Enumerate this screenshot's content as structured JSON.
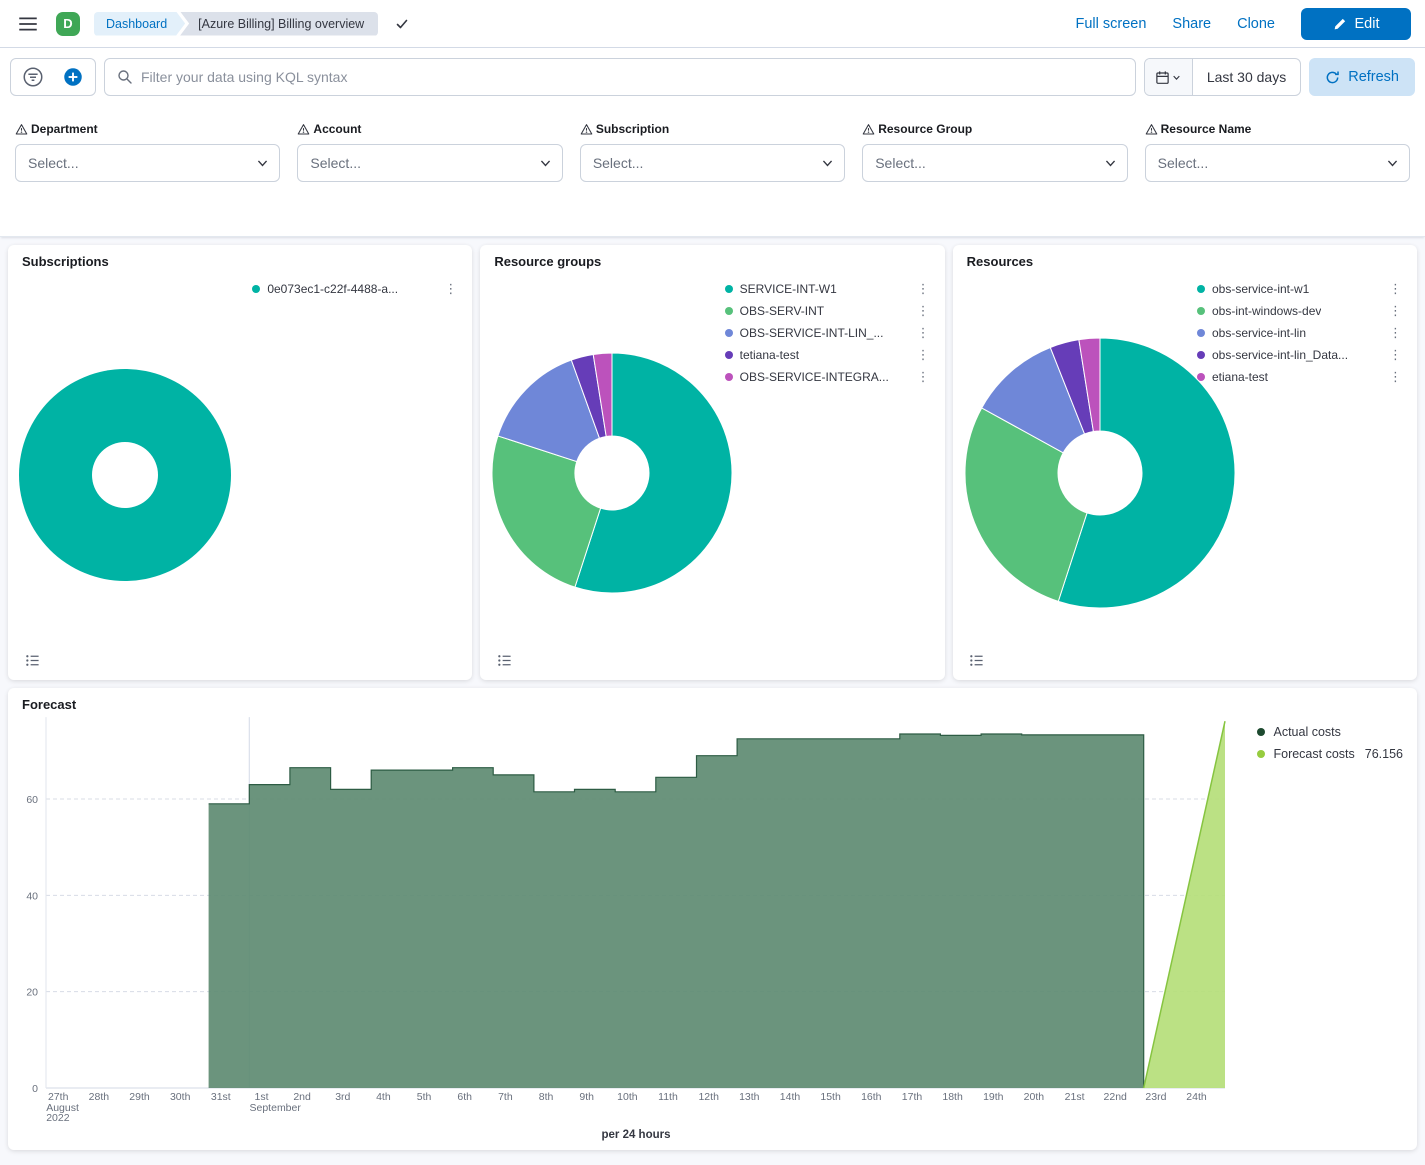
{
  "header": {
    "space_initial": "D",
    "breadcrumbs": [
      {
        "label": "Dashboard"
      },
      {
        "label": "[Azure Billing] Billing overview"
      }
    ],
    "links": {
      "full_screen": "Full screen",
      "share": "Share",
      "clone": "Clone"
    },
    "edit_button": "Edit"
  },
  "toolbar": {
    "search_placeholder": "Filter your data using KQL syntax",
    "time_range": "Last 30 days",
    "refresh_label": "Refresh"
  },
  "filters": {
    "placeholder": "Select...",
    "fields": [
      {
        "label": "Department"
      },
      {
        "label": "Account"
      },
      {
        "label": "Subscription"
      },
      {
        "label": "Resource Group"
      },
      {
        "label": "Resource Name"
      }
    ]
  },
  "icons": {
    "menu": "hamburger",
    "saved": "check",
    "edit": "pencil",
    "query_filters": "filter-funnel-circle",
    "add_filter": "plus-circle",
    "search": "magnifier",
    "date_picker": "calendar",
    "refresh": "refresh-arrow",
    "field_warning": "warning-triangle",
    "select_chevron": "chevron-down",
    "legend_row_menu": "vertical-dots",
    "legend_toggle": "list"
  },
  "colors": {
    "primary": "#0071C2",
    "teal": "#00B3A4",
    "green": "#57C17B",
    "periwinkle": "#6F87D8",
    "purple": "#663DB8",
    "magenta": "#BC52BC",
    "page_bg": "#F7F8FC"
  },
  "chart_data": [
    {
      "type": "pie",
      "title": "Subscriptions",
      "labels": [
        "0e073ec1-c22f-4488-a..."
      ],
      "values": [
        100
      ],
      "colors": [
        "#00B3A4"
      ],
      "legend_position": "right"
    },
    {
      "type": "pie",
      "title": "Resource groups",
      "labels": [
        "SERVICE-INT-W1",
        "OBS-SERV-INT",
        "OBS-SERVICE-INT-LIN_...",
        "tetiana-test",
        "OBS-SERVICE-INTEGRA..."
      ],
      "values": [
        55,
        25,
        14.5,
        3,
        2.5
      ],
      "colors": [
        "#00B3A4",
        "#57C17B",
        "#6F87D8",
        "#663DB8",
        "#BC52BC"
      ],
      "legend_position": "right"
    },
    {
      "type": "pie",
      "title": "Resources",
      "labels": [
        "obs-service-int-w1",
        "obs-int-windows-dev",
        "obs-service-int-lin",
        "obs-service-int-lin_Data...",
        "etiana-test"
      ],
      "values": [
        55,
        28,
        11,
        3.5,
        2.5
      ],
      "colors": [
        "#00B3A4",
        "#57C17B",
        "#6F87D8",
        "#663DB8",
        "#BC52BC"
      ],
      "legend_position": "right"
    },
    {
      "type": "area",
      "title": "Forecast",
      "xlabel": "per 24 hours",
      "ylim": [
        0,
        77
      ],
      "yticks": [
        0,
        20,
        40,
        60
      ],
      "grid": "dashed-horizontal",
      "legend_position": "top-right",
      "month_separator_index": 4.7,
      "x_ticks": [
        {
          "label": "27th",
          "sub": [
            "August",
            "2022"
          ]
        },
        {
          "label": "28th"
        },
        {
          "label": "29th"
        },
        {
          "label": "30th"
        },
        {
          "label": "31st"
        },
        {
          "label": "1st",
          "sub": [
            "September"
          ]
        },
        {
          "label": "2nd"
        },
        {
          "label": "3rd"
        },
        {
          "label": "4th"
        },
        {
          "label": "5th"
        },
        {
          "label": "6th"
        },
        {
          "label": "7th"
        },
        {
          "label": "8th"
        },
        {
          "label": "9th"
        },
        {
          "label": "10th"
        },
        {
          "label": "11th"
        },
        {
          "label": "12th"
        },
        {
          "label": "13th"
        },
        {
          "label": "14th"
        },
        {
          "label": "15th"
        },
        {
          "label": "16th"
        },
        {
          "label": "17th"
        },
        {
          "label": "18th"
        },
        {
          "label": "19th"
        },
        {
          "label": "20th"
        },
        {
          "label": "21st"
        },
        {
          "label": "22nd"
        },
        {
          "label": "23rd"
        },
        {
          "label": "24th"
        }
      ],
      "series": [
        {
          "name": "Actual costs",
          "render": "step-area",
          "start_index": 4,
          "values": [
            59,
            63,
            66.5,
            62,
            66,
            66,
            66.5,
            65,
            61.5,
            62,
            61.5,
            64.5,
            69,
            72.5,
            72.5,
            72.5,
            72.5,
            73.5,
            73.2,
            73.5,
            73.3,
            73.3,
            73.3
          ],
          "fill": "#5E8B72",
          "stroke": "#2D5C44",
          "legend_dot": "#1D4A2F"
        },
        {
          "name": "Forecast costs",
          "render": "line-area",
          "points": [
            [
              26.7,
              0
            ],
            [
              28.7,
              76.156
            ]
          ],
          "fill": "#B5DE79",
          "stroke": "#86C440",
          "legend_dot": "#96CC3F",
          "legend_value": "76.156"
        }
      ]
    }
  ]
}
